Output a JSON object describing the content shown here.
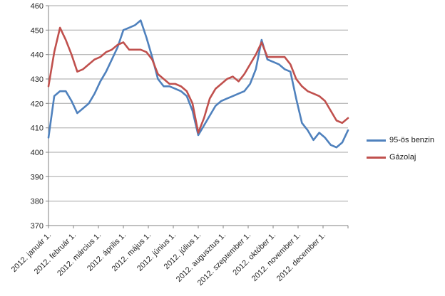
{
  "chart_data": {
    "type": "line",
    "title": "",
    "xlabel": "",
    "ylabel": "",
    "ylim": [
      370,
      460
    ],
    "y_ticks": [
      370,
      380,
      390,
      400,
      410,
      420,
      430,
      440,
      450,
      460
    ],
    "x_tick_labels": [
      "2012. január 1.",
      "2012. február 1.",
      "2012. március 1.",
      "2012. április 1.",
      "2012. május 1.",
      "2012. június 1.",
      "2012. július 1.",
      "2012. augusztus 1.",
      "2012. szeptember 1.",
      "2012. október 1.",
      "2012. november 1.",
      "2012. december 1."
    ],
    "x_sampling": "weekly (53 points, Jan 1 – Dec 31 2012)",
    "grid": "horizontal",
    "legend_position": "right",
    "colors": {
      "benzin_line": "#4F81BD",
      "gazolaj_line": "#C0504D",
      "gridline": "#A6A6A6",
      "axis": "#808080",
      "tick_label": "#262626"
    },
    "series": [
      {
        "name": "95-ös benzin",
        "color": "#4F81BD",
        "values": [
          406,
          423,
          425,
          425,
          421,
          416,
          418,
          420,
          424,
          429,
          433,
          438,
          443,
          450,
          451,
          452,
          454,
          447,
          439,
          430,
          427,
          427,
          426,
          425,
          423,
          417,
          407,
          411,
          415,
          419,
          421,
          422,
          423,
          424,
          425,
          428,
          434,
          446,
          438,
          437,
          436,
          434,
          433,
          422,
          412,
          409,
          405,
          408,
          406,
          403,
          402,
          404,
          409
        ]
      },
      {
        "name": "Gázolaj",
        "color": "#C0504D",
        "values": [
          427,
          441,
          451,
          446,
          440,
          433,
          434,
          436,
          438,
          439,
          441,
          442,
          444,
          445,
          442,
          442,
          442,
          441,
          438,
          432,
          430,
          428,
          428,
          427,
          425,
          420,
          408,
          414,
          422,
          426,
          428,
          430,
          431,
          429,
          432,
          436,
          440,
          445,
          439,
          439,
          439,
          439,
          436,
          430,
          427,
          425,
          424,
          423,
          421,
          417,
          413,
          412,
          414
        ]
      }
    ]
  }
}
